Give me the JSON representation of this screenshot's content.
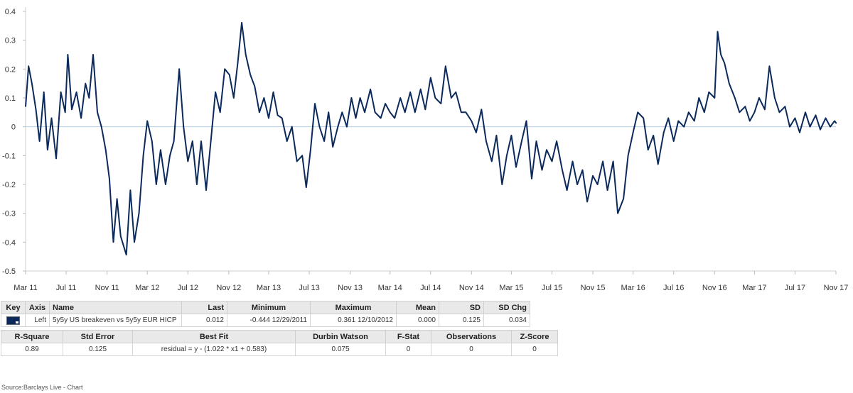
{
  "chart_data": {
    "type": "line",
    "series": [
      {
        "name": "5y5y US breakeven vs 5y5y EUR HICP",
        "color": "#0b2a5b",
        "points": [
          [
            "2011-03-01",
            0.07
          ],
          [
            "2011-03-10",
            0.21
          ],
          [
            "2011-03-20",
            0.15
          ],
          [
            "2011-04-01",
            0.06
          ],
          [
            "2011-04-12",
            -0.05
          ],
          [
            "2011-04-25",
            0.12
          ],
          [
            "2011-05-06",
            -0.08
          ],
          [
            "2011-05-18",
            0.03
          ],
          [
            "2011-06-01",
            -0.11
          ],
          [
            "2011-06-15",
            0.12
          ],
          [
            "2011-06-28",
            0.05
          ],
          [
            "2011-07-06",
            0.25
          ],
          [
            "2011-07-18",
            0.06
          ],
          [
            "2011-08-01",
            0.12
          ],
          [
            "2011-08-15",
            0.03
          ],
          [
            "2011-08-28",
            0.15
          ],
          [
            "2011-09-08",
            0.1
          ],
          [
            "2011-09-20",
            0.25
          ],
          [
            "2011-10-03",
            0.05
          ],
          [
            "2011-10-15",
            0.0
          ],
          [
            "2011-10-28",
            -0.08
          ],
          [
            "2011-11-08",
            -0.18
          ],
          [
            "2011-11-20",
            -0.4
          ],
          [
            "2011-12-01",
            -0.25
          ],
          [
            "2011-12-12",
            -0.38
          ],
          [
            "2011-12-29",
            -0.444
          ],
          [
            "2012-01-10",
            -0.22
          ],
          [
            "2012-01-22",
            -0.4
          ],
          [
            "2012-02-05",
            -0.3
          ],
          [
            "2012-02-18",
            -0.1
          ],
          [
            "2012-03-01",
            0.02
          ],
          [
            "2012-03-15",
            -0.05
          ],
          [
            "2012-03-28",
            -0.2
          ],
          [
            "2012-04-10",
            -0.08
          ],
          [
            "2012-04-25",
            -0.2
          ],
          [
            "2012-05-08",
            -0.1
          ],
          [
            "2012-05-20",
            -0.05
          ],
          [
            "2012-06-05",
            0.2
          ],
          [
            "2012-06-18",
            0.0
          ],
          [
            "2012-07-01",
            -0.12
          ],
          [
            "2012-07-15",
            -0.05
          ],
          [
            "2012-07-28",
            -0.2
          ],
          [
            "2012-08-10",
            -0.05
          ],
          [
            "2012-08-25",
            -0.22
          ],
          [
            "2012-09-08",
            -0.05
          ],
          [
            "2012-09-22",
            0.12
          ],
          [
            "2012-10-06",
            0.05
          ],
          [
            "2012-10-20",
            0.2
          ],
          [
            "2012-11-03",
            0.18
          ],
          [
            "2012-11-16",
            0.1
          ],
          [
            "2012-11-28",
            0.22
          ],
          [
            "2012-12-10",
            0.361
          ],
          [
            "2012-12-22",
            0.25
          ],
          [
            "2013-01-05",
            0.18
          ],
          [
            "2013-01-18",
            0.14
          ],
          [
            "2013-02-01",
            0.05
          ],
          [
            "2013-02-15",
            0.1
          ],
          [
            "2013-03-01",
            0.03
          ],
          [
            "2013-03-15",
            0.12
          ],
          [
            "2013-03-28",
            0.04
          ],
          [
            "2013-04-10",
            0.03
          ],
          [
            "2013-04-25",
            -0.05
          ],
          [
            "2013-05-10",
            0.0
          ],
          [
            "2013-05-25",
            -0.12
          ],
          [
            "2013-06-10",
            -0.1
          ],
          [
            "2013-06-22",
            -0.21
          ],
          [
            "2013-07-05",
            -0.08
          ],
          [
            "2013-07-18",
            0.08
          ],
          [
            "2013-08-01",
            0.0
          ],
          [
            "2013-08-15",
            -0.05
          ],
          [
            "2013-08-28",
            0.05
          ],
          [
            "2013-09-10",
            -0.07
          ],
          [
            "2013-09-25",
            0.0
          ],
          [
            "2013-10-08",
            0.05
          ],
          [
            "2013-10-22",
            0.0
          ],
          [
            "2013-11-05",
            0.1
          ],
          [
            "2013-11-18",
            0.03
          ],
          [
            "2013-12-01",
            0.1
          ],
          [
            "2013-12-15",
            0.05
          ],
          [
            "2014-01-01",
            0.13
          ],
          [
            "2014-01-15",
            0.05
          ],
          [
            "2014-02-01",
            0.03
          ],
          [
            "2014-02-15",
            0.08
          ],
          [
            "2014-03-01",
            0.05
          ],
          [
            "2014-03-15",
            0.03
          ],
          [
            "2014-04-01",
            0.1
          ],
          [
            "2014-04-15",
            0.05
          ],
          [
            "2014-05-01",
            0.12
          ],
          [
            "2014-05-15",
            0.05
          ],
          [
            "2014-06-01",
            0.13
          ],
          [
            "2014-06-15",
            0.06
          ],
          [
            "2014-07-01",
            0.17
          ],
          [
            "2014-07-15",
            0.1
          ],
          [
            "2014-08-01",
            0.08
          ],
          [
            "2014-08-15",
            0.21
          ],
          [
            "2014-09-01",
            0.1
          ],
          [
            "2014-09-15",
            0.12
          ],
          [
            "2014-10-01",
            0.05
          ],
          [
            "2014-10-15",
            0.05
          ],
          [
            "2014-11-01",
            0.02
          ],
          [
            "2014-11-15",
            -0.02
          ],
          [
            "2014-12-01",
            0.06
          ],
          [
            "2014-12-15",
            -0.05
          ],
          [
            "2015-01-01",
            -0.12
          ],
          [
            "2015-01-15",
            -0.03
          ],
          [
            "2015-02-01",
            -0.2
          ],
          [
            "2015-02-15",
            -0.1
          ],
          [
            "2015-03-01",
            -0.03
          ],
          [
            "2015-03-15",
            -0.14
          ],
          [
            "2015-04-01",
            -0.05
          ],
          [
            "2015-04-15",
            0.02
          ],
          [
            "2015-05-01",
            -0.18
          ],
          [
            "2015-05-15",
            -0.05
          ],
          [
            "2015-06-01",
            -0.15
          ],
          [
            "2015-06-15",
            -0.08
          ],
          [
            "2015-07-01",
            -0.12
          ],
          [
            "2015-07-15",
            -0.05
          ],
          [
            "2015-08-01",
            -0.15
          ],
          [
            "2015-08-15",
            -0.22
          ],
          [
            "2015-09-01",
            -0.12
          ],
          [
            "2015-09-15",
            -0.2
          ],
          [
            "2015-10-01",
            -0.15
          ],
          [
            "2015-10-15",
            -0.26
          ],
          [
            "2015-11-01",
            -0.17
          ],
          [
            "2015-11-15",
            -0.2
          ],
          [
            "2015-12-01",
            -0.12
          ],
          [
            "2015-12-15",
            -0.22
          ],
          [
            "2016-01-01",
            -0.12
          ],
          [
            "2016-01-15",
            -0.3
          ],
          [
            "2016-02-01",
            -0.25
          ],
          [
            "2016-02-15",
            -0.1
          ],
          [
            "2016-03-01",
            -0.02
          ],
          [
            "2016-03-15",
            0.05
          ],
          [
            "2016-04-01",
            0.03
          ],
          [
            "2016-04-15",
            -0.08
          ],
          [
            "2016-05-01",
            -0.03
          ],
          [
            "2016-05-15",
            -0.13
          ],
          [
            "2016-06-01",
            -0.02
          ],
          [
            "2016-06-15",
            0.03
          ],
          [
            "2016-07-01",
            -0.05
          ],
          [
            "2016-07-15",
            0.02
          ],
          [
            "2016-08-01",
            0.0
          ],
          [
            "2016-08-15",
            0.05
          ],
          [
            "2016-09-01",
            0.02
          ],
          [
            "2016-09-15",
            0.1
          ],
          [
            "2016-10-01",
            0.05
          ],
          [
            "2016-10-15",
            0.12
          ],
          [
            "2016-11-01",
            0.1
          ],
          [
            "2016-11-10",
            0.33
          ],
          [
            "2016-11-20",
            0.25
          ],
          [
            "2016-12-01",
            0.22
          ],
          [
            "2016-12-15",
            0.15
          ],
          [
            "2017-01-01",
            0.1
          ],
          [
            "2017-01-15",
            0.05
          ],
          [
            "2017-02-01",
            0.07
          ],
          [
            "2017-02-15",
            0.02
          ],
          [
            "2017-03-01",
            0.05
          ],
          [
            "2017-03-15",
            0.1
          ],
          [
            "2017-04-01",
            0.06
          ],
          [
            "2017-04-15",
            0.21
          ],
          [
            "2017-05-01",
            0.1
          ],
          [
            "2017-05-15",
            0.05
          ],
          [
            "2017-06-01",
            0.07
          ],
          [
            "2017-06-15",
            0.0
          ],
          [
            "2017-07-01",
            0.03
          ],
          [
            "2017-07-15",
            -0.02
          ],
          [
            "2017-08-01",
            0.05
          ],
          [
            "2017-08-15",
            0.0
          ],
          [
            "2017-09-01",
            0.04
          ],
          [
            "2017-09-15",
            -0.01
          ],
          [
            "2017-10-01",
            0.03
          ],
          [
            "2017-10-15",
            0.0
          ],
          [
            "2017-10-28",
            0.02
          ],
          [
            "2017-11-02",
            0.012
          ]
        ]
      }
    ],
    "x_ticks": [
      "Mar 11",
      "Jul 11",
      "Nov 11",
      "Mar 12",
      "Jul 12",
      "Nov 12",
      "Mar 13",
      "Jul 13",
      "Nov 13",
      "Mar 14",
      "Jul 14",
      "Nov 14",
      "Mar 15",
      "Jul 15",
      "Nov 15",
      "Mar 16",
      "Jul 16",
      "Nov 16",
      "Mar 17",
      "Jul 17",
      "Nov 17"
    ],
    "x_tick_dates": [
      "2011-03-01",
      "2011-07-01",
      "2011-11-01",
      "2012-03-01",
      "2012-07-01",
      "2012-11-01",
      "2013-03-01",
      "2013-07-01",
      "2013-11-01",
      "2014-03-01",
      "2014-07-01",
      "2014-11-01",
      "2015-03-01",
      "2015-07-01",
      "2015-11-01",
      "2016-03-01",
      "2016-07-01",
      "2016-11-01",
      "2017-03-01",
      "2017-07-01",
      "2017-11-01"
    ],
    "x_range": [
      "2011-03-01",
      "2017-11-01"
    ],
    "y_ticks": [
      "0.4",
      "0.3",
      "0.2",
      "0.1",
      "0",
      "-0.1",
      "-0.2",
      "-0.3",
      "-0.4",
      "-0.5"
    ],
    "y_tick_values": [
      0.4,
      0.3,
      0.2,
      0.1,
      0,
      -0.1,
      -0.2,
      -0.3,
      -0.4,
      -0.5
    ],
    "ylim": [
      -0.5,
      0.4
    ],
    "title": "",
    "xlabel": "",
    "ylabel": "",
    "grid": false,
    "zero_line": true
  },
  "stats_table": {
    "headers": [
      "Key",
      "Axis",
      "Name",
      "Last",
      "Minimum",
      "Maximum",
      "Mean",
      "SD",
      "SD Chg"
    ],
    "row": {
      "axis": "Left",
      "name": "5y5y US breakeven vs 5y5y EUR HICP",
      "last": "0.012",
      "minimum": "-0.444 12/29/2011",
      "maximum": "0.361 12/10/2012",
      "mean": "0.000",
      "sd": "0.125",
      "sd_chg": "0.034"
    }
  },
  "fit_table": {
    "headers": [
      "R-Square",
      "Std Error",
      "Best Fit",
      "Durbin Watson",
      "F-Stat",
      "Observations",
      "Z-Score"
    ],
    "row": [
      "0.89",
      "0.125",
      "residual = y - (1.022 * x1 + 0.583)",
      "0.075",
      "0",
      "0",
      "0"
    ]
  },
  "source": "Source:Barclays Live - Chart"
}
